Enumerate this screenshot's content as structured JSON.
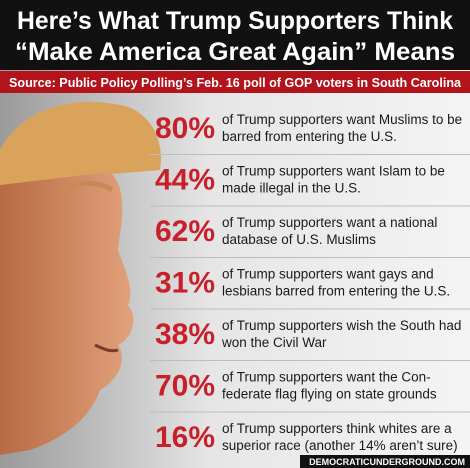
{
  "header": {
    "title_lines": [
      "Here’s What Trump Supporters Think",
      "“Make America Great Again” Means"
    ],
    "source": "Source: Public Policy Polling’s Feb. 16 poll of GOP voters in South Carolina"
  },
  "items": [
    {
      "percent": "80%",
      "lines": [
        "of Trump supporters want Muslims to be",
        "barred from entering the U.S."
      ]
    },
    {
      "percent": "44%",
      "lines": [
        "of Trump supporters want Islam to be",
        "made illegal in the U.S."
      ]
    },
    {
      "percent": "62%",
      "lines": [
        "of Trump supporters want a national",
        "database of U.S. Muslims"
      ]
    },
    {
      "percent": "31%",
      "lines": [
        "of Trump supporters want gays and",
        "lesbians barred from entering the U.S."
      ]
    },
    {
      "percent": "38%",
      "lines": [
        "of Trump supporters wish the South had",
        "won the Civil War"
      ]
    },
    {
      "percent": "70%",
      "lines": [
        "of Trump supporters want the Con-",
        "federate flag flying on state grounds"
      ]
    },
    {
      "percent": "16%",
      "lines": [
        "of Trump supporters think whites are a",
        "superior race (another 14% aren’t sure)"
      ]
    }
  ],
  "footer": "DEMOCRATICUNDERGROUND.COM"
}
